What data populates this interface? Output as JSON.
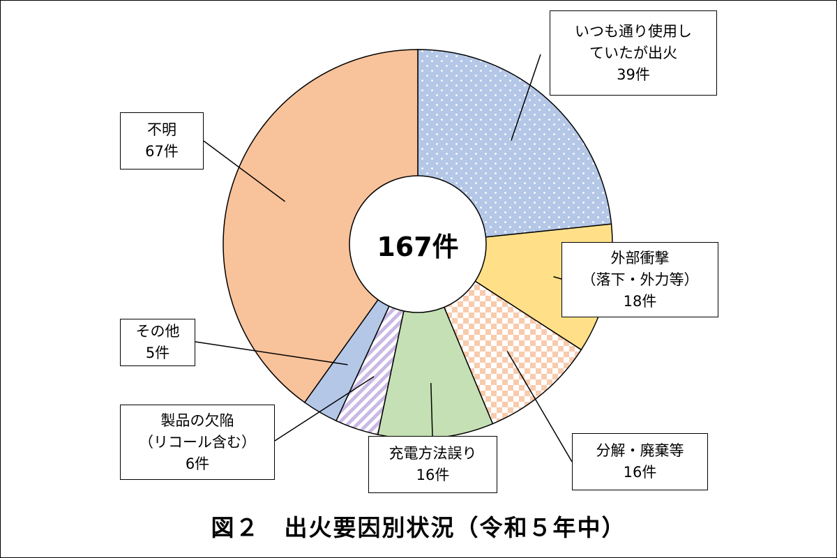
{
  "chart_data": {
    "type": "pie",
    "title": "図２　出火要因別状況（令和５年中）",
    "center_label": "167件",
    "total": 167,
    "slices": [
      {
        "label_lines": [
          "いつも通り使用し",
          "ていたが出火"
        ],
        "count_label": "39件",
        "value": 39,
        "color": "#b4c7e7",
        "pattern": "dots"
      },
      {
        "label_lines": [
          "外部衝撃",
          "（落下・外力等）"
        ],
        "count_label": "18件",
        "value": 18,
        "color": "#ffe089",
        "pattern": "solid"
      },
      {
        "label_lines": [
          "分解・廃棄等"
        ],
        "count_label": "16件",
        "value": 16,
        "color": "#f8cbad",
        "pattern": "checker"
      },
      {
        "label_lines": [
          "充電方法誤り"
        ],
        "count_label": "16件",
        "value": 16,
        "color": "#c5e0b4",
        "pattern": "solid"
      },
      {
        "label_lines": [
          "製品の欠陥",
          "（リコール含む）"
        ],
        "count_label": "6件",
        "value": 6,
        "color": "#c9b9e4",
        "pattern": "stripes"
      },
      {
        "label_lines": [
          "その他"
        ],
        "count_label": "5件",
        "value": 5,
        "color": "#b4c7e7",
        "pattern": "solid"
      },
      {
        "label_lines": [
          "不明"
        ],
        "count_label": "67件",
        "value": 67,
        "color": "#f8c29a",
        "pattern": "solid"
      }
    ]
  }
}
